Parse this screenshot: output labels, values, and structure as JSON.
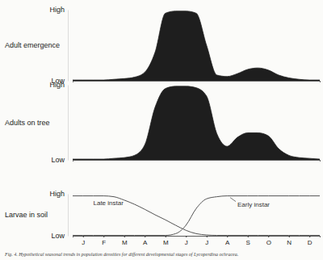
{
  "chart_data": [
    {
      "type": "area",
      "title": "Adult emergence",
      "x": [
        0,
        0.5,
        1,
        1.5,
        2,
        2.5,
        3,
        3.5,
        4,
        4.5,
        5,
        5.5,
        6,
        6.5,
        7,
        7.5,
        8,
        8.5,
        9,
        9.5,
        10,
        10.5,
        11,
        11.5,
        12
      ],
      "series": [
        {
          "name": "Adult emergence",
          "color": "#1e1e1e",
          "values": [
            0.1,
            0.1,
            0.1,
            0.1,
            0.2,
            0.3,
            0.5,
            1.2,
            4,
            9.5,
            9.8,
            9.8,
            9.5,
            5,
            0.8,
            0.6,
            1,
            1.6,
            1.8,
            1.5,
            0.8,
            0.4,
            0.2,
            0.1,
            0.1
          ]
        }
      ],
      "xlim": [
        0,
        12
      ],
      "ylim": [
        0,
        10
      ],
      "yticks": [
        {
          "value": 0,
          "label": "Low"
        },
        {
          "value": 10,
          "label": "High"
        }
      ],
      "tick_labels": "y"
    },
    {
      "type": "area",
      "title": "Adults on tree",
      "x": [
        0,
        0.5,
        1,
        1.5,
        2,
        2.5,
        3,
        3.5,
        4,
        4.5,
        5,
        5.5,
        6,
        6.5,
        7,
        7.5,
        8,
        8.5,
        9,
        9.5,
        10,
        10.5,
        11,
        11.5,
        12
      ],
      "series": [
        {
          "name": "Adults on tree",
          "color": "#1e1e1e",
          "values": [
            0.1,
            0.1,
            0.1,
            0.1,
            0.2,
            0.3,
            0.6,
            2,
            7,
            9.5,
            9.8,
            9.8,
            9.6,
            8.5,
            3.5,
            1.8,
            3,
            3.6,
            3.6,
            3.2,
            1.5,
            0.6,
            0.3,
            0.2,
            0.1
          ]
        }
      ],
      "xlim": [
        0,
        12
      ],
      "ylim": [
        0,
        10
      ],
      "yticks": [
        {
          "value": 0,
          "label": "Low"
        },
        {
          "value": 10,
          "label": "High"
        }
      ],
      "tick_labels": "y"
    },
    {
      "type": "line",
      "title": "Larvae in soil",
      "x": [
        0,
        0.5,
        1,
        1.5,
        2,
        2.5,
        3,
        3.5,
        4,
        4.5,
        5,
        5.5,
        6,
        6.5,
        7,
        7.5,
        8,
        8.5,
        9,
        9.5,
        10,
        10.5,
        11,
        11.5,
        12
      ],
      "series": [
        {
          "name": "Late instar",
          "color": "#555555",
          "values": [
            9.5,
            9.5,
            9.5,
            9.5,
            9.3,
            8.5,
            7.5,
            6.3,
            5,
            3.8,
            2.5,
            1.3,
            0.5,
            0.2,
            0.1,
            0.1,
            0.1,
            0.1,
            0.1,
            0.1,
            0.1,
            0.1,
            0.1,
            0.1,
            0.1
          ]
        },
        {
          "name": "Early instar",
          "color": "#555555",
          "values": [
            0.1,
            0.1,
            0.1,
            0.1,
            0.1,
            0.1,
            0.1,
            0.1,
            0.1,
            0.1,
            0.5,
            2.5,
            6.5,
            8.8,
            9.3,
            9.5,
            9.5,
            9.5,
            9.5,
            9.5,
            9.5,
            9.5,
            9.5,
            9.5,
            9.5
          ]
        }
      ],
      "xlim": [
        0,
        12
      ],
      "ylim": [
        0,
        10
      ],
      "xticks": [
        {
          "value": 0.5,
          "label": "J"
        },
        {
          "value": 1.5,
          "label": "F"
        },
        {
          "value": 2.5,
          "label": "M"
        },
        {
          "value": 3.5,
          "label": "A"
        },
        {
          "value": 4.5,
          "label": "M"
        },
        {
          "value": 5.5,
          "label": "J"
        },
        {
          "value": 6.5,
          "label": "J"
        },
        {
          "value": 7.5,
          "label": "A"
        },
        {
          "value": 8.5,
          "label": "S"
        },
        {
          "value": 9.5,
          "label": "O"
        },
        {
          "value": 10.5,
          "label": "N"
        },
        {
          "value": 11.5,
          "label": "D"
        }
      ],
      "yticks": [
        {
          "value": 0,
          "label": "Low"
        },
        {
          "value": 10,
          "label": "High"
        }
      ]
    }
  ],
  "caption": "Fig. 4. Hypothetical seasonal trends in population densities for different developmental stages of Lycoperdina ochracea."
}
